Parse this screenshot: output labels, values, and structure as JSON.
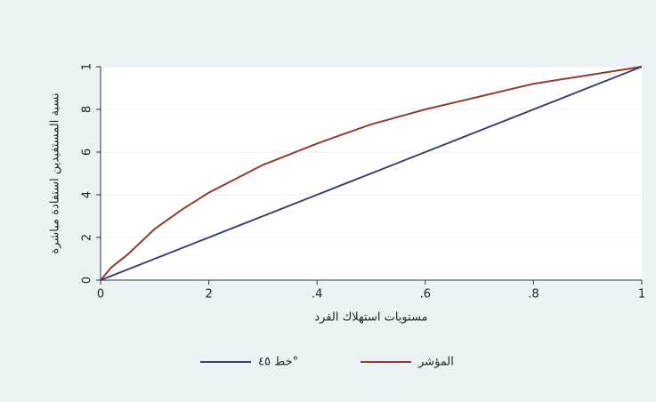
{
  "chart_data": {
    "type": "line",
    "x": [
      0,
      0.02,
      0.05,
      0.1,
      0.15,
      0.2,
      0.3,
      0.4,
      0.5,
      0.6,
      0.7,
      0.8,
      0.9,
      1
    ],
    "series": [
      {
        "name": "المؤشر",
        "color": "#953a2e",
        "values": [
          0,
          0.06,
          0.12,
          0.24,
          0.33,
          0.41,
          0.54,
          0.64,
          0.73,
          0.8,
          0.86,
          0.92,
          0.96,
          1
        ]
      },
      {
        "name": "خط ٤٥°",
        "color": "#3a3f6b",
        "values": [
          0,
          0.02,
          0.05,
          0.1,
          0.15,
          0.2,
          0.3,
          0.4,
          0.5,
          0.6,
          0.7,
          0.8,
          0.9,
          1
        ]
      }
    ],
    "xlabel": "مستويات استهلاك الفرد",
    "ylabel": "نسبة المستفيدين استفادة مباشرة",
    "xlim": [
      0,
      1
    ],
    "ylim": [
      0,
      1
    ],
    "xticks": [
      0,
      {
        "value": 0.2,
        "label": "2"
      },
      {
        "value": 0.4,
        "label": ".4"
      },
      {
        "value": 0.6,
        "label": ".6"
      },
      {
        "value": 0.8,
        "label": ".8"
      },
      1
    ],
    "yticks": [
      0,
      {
        "value": 0.2,
        "label": "2"
      },
      {
        "value": 0.4,
        "label": "4"
      },
      {
        "value": 0.6,
        "label": "6"
      },
      {
        "value": 0.8,
        "label": "8"
      },
      1
    ],
    "grid": true,
    "legend": "bottom"
  }
}
